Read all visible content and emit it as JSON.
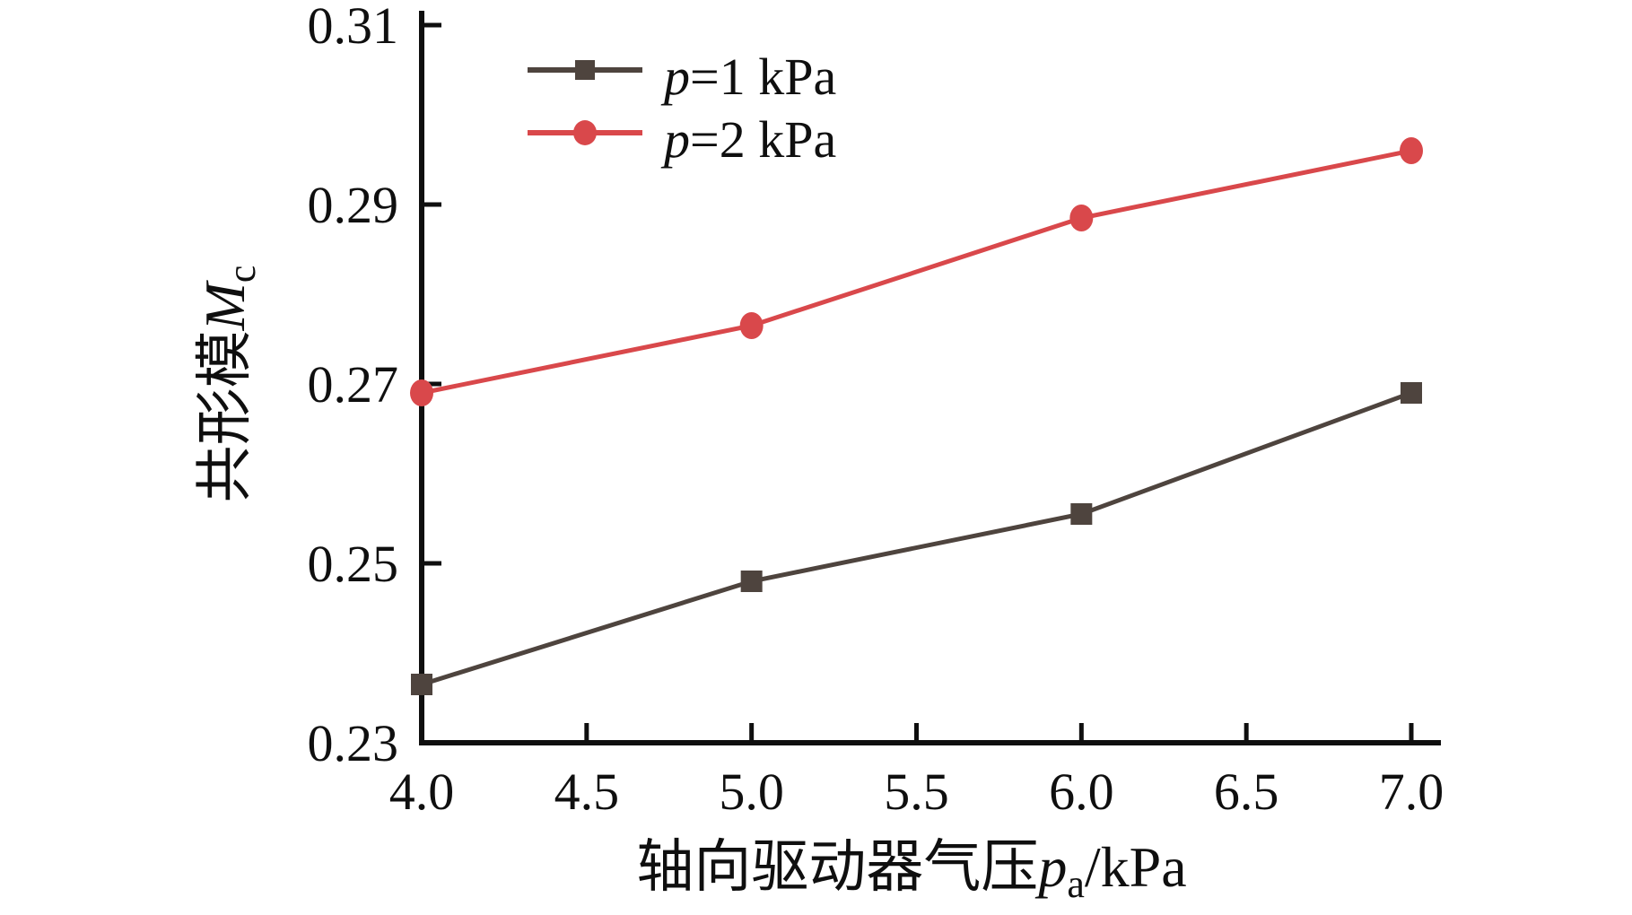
{
  "chart_data": {
    "type": "line",
    "x": [
      4.0,
      5.0,
      6.0,
      7.0
    ],
    "series": [
      {
        "name": "p=1 kPa",
        "legend": {
          "symbol": "p",
          "rest": "=1 kPa"
        },
        "values": [
          0.2365,
          0.248,
          0.2555,
          0.269
        ],
        "color": "#4e443e",
        "marker": "square"
      },
      {
        "name": "p=2 kPa",
        "legend": {
          "symbol": "p",
          "rest": "=2 kPa"
        },
        "values": [
          0.269,
          0.2765,
          0.2885,
          0.296
        ],
        "color": "#d9484b",
        "marker": "circle"
      }
    ],
    "xlabel": {
      "prefix": "轴向驱动器气压",
      "symbol": "p",
      "sub": "a",
      "suffix": "/kPa"
    },
    "ylabel": {
      "prefix": "共形模",
      "symbol": "M",
      "sub": "c"
    },
    "xlim": [
      4.0,
      7.0
    ],
    "ylim": [
      0.23,
      0.31
    ],
    "xticks": {
      "values": [
        4.0,
        4.5,
        5.0,
        5.5,
        6.0,
        6.5,
        7.0
      ],
      "labels": [
        "4.0",
        "4.5",
        "5.0",
        "5.5",
        "6.0",
        "6.5",
        "7.0"
      ]
    },
    "yticks": {
      "values": [
        0.23,
        0.25,
        0.27,
        0.29,
        0.31
      ],
      "labels": [
        "0.23",
        "0.25",
        "0.27",
        "0.29",
        "0.31"
      ]
    },
    "grid": false,
    "legend_position": "upper-left-inside",
    "axis_color": "#0f0f0f",
    "background": "#ffffff"
  }
}
